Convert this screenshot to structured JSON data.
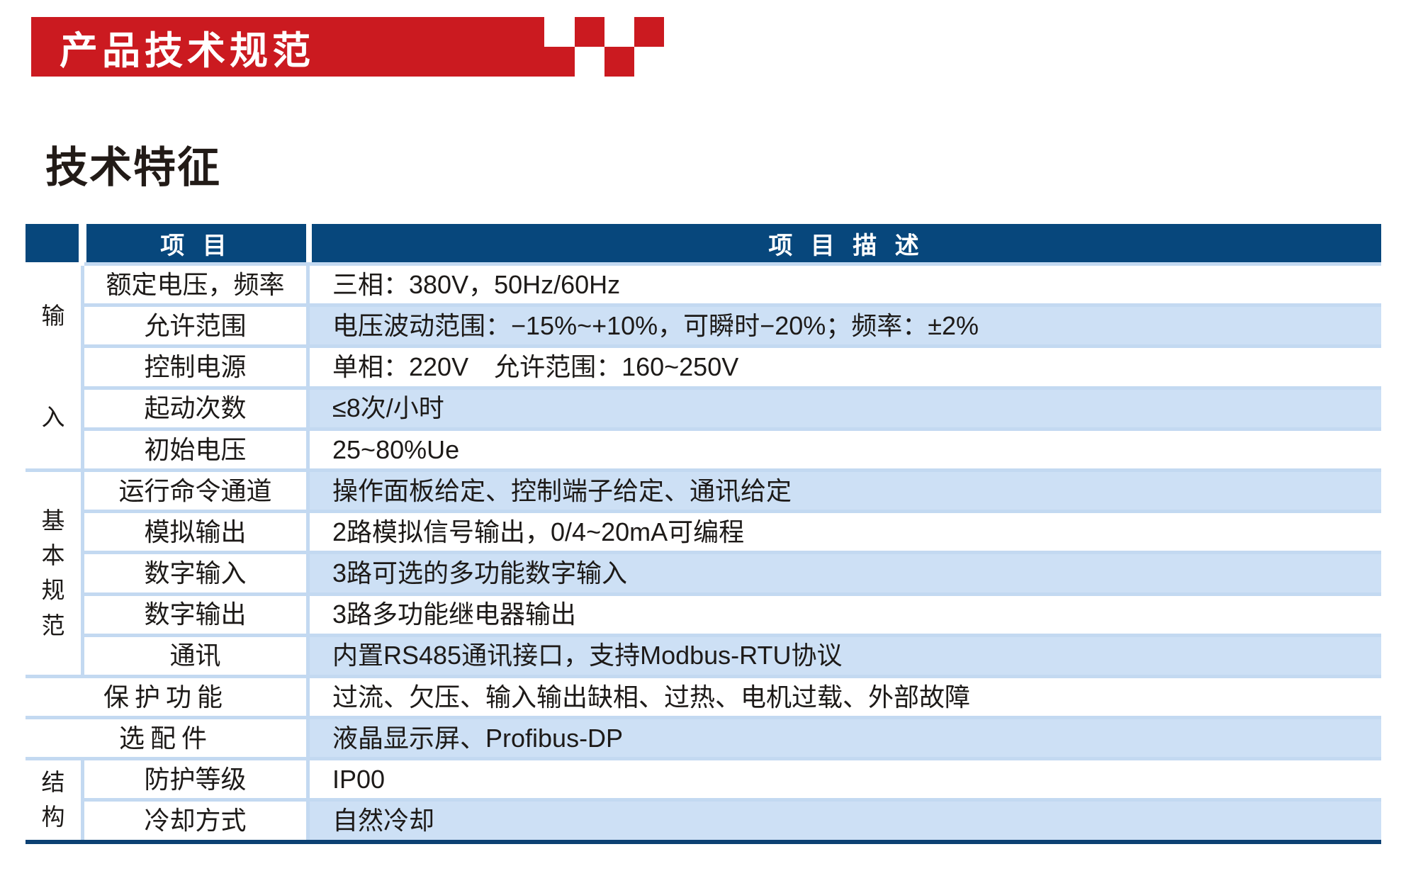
{
  "banner": {
    "title": "产品技术规范"
  },
  "section": {
    "heading": "技术特征"
  },
  "table": {
    "header": {
      "col_item": "项 目",
      "col_desc": "项 目 描 述"
    },
    "groups": [
      {
        "label": "输入",
        "start": 0,
        "count": 5
      },
      {
        "label": "基本规范",
        "start": 5,
        "count": 5
      },
      {
        "label": "结构",
        "start": 12,
        "count": 2
      }
    ],
    "rows": [
      {
        "item": "额定电压，频率",
        "desc": "三相：380V，50Hz/60Hz"
      },
      {
        "item": "允许范围",
        "desc": "电压波动范围：−15%~+10%，可瞬时−20%；频率：±2%"
      },
      {
        "item": "控制电源",
        "desc": "单相：220V　允许范围：160~250V"
      },
      {
        "item": "起动次数",
        "desc": "≤8次/小时"
      },
      {
        "item": "初始电压",
        "desc": "25~80%Ue"
      },
      {
        "item": "运行命令通道",
        "desc": "操作面板给定、控制端子给定、通讯给定"
      },
      {
        "item": "模拟输出",
        "desc": "2路模拟信号输出，0/4~20mA可编程"
      },
      {
        "item": "数字输入",
        "desc": "3路可选的多功能数字输入"
      },
      {
        "item": "数字输出",
        "desc": "3路多功能继电器输出"
      },
      {
        "item": "通讯",
        "desc": "内置RS485通讯接口，支持Modbus-RTU协议"
      },
      {
        "item": "保护功能",
        "desc": "过流、欠压、输入输出缺相、过热、电机过载、外部故障",
        "full_span": true
      },
      {
        "item": "选配件",
        "desc": "液晶显示屏、Profibus-DP",
        "full_span": true
      },
      {
        "item": "防护等级",
        "desc": "IP00"
      },
      {
        "item": "冷却方式",
        "desc": "自然冷却"
      }
    ],
    "colors": {
      "banner_red": "#cb1a20",
      "header_blue": "#07477c",
      "row_shade_blue": "#cde0f5",
      "divider_blue": "#c3d9f1",
      "bottom_rule_navy": "#0c4173"
    }
  }
}
